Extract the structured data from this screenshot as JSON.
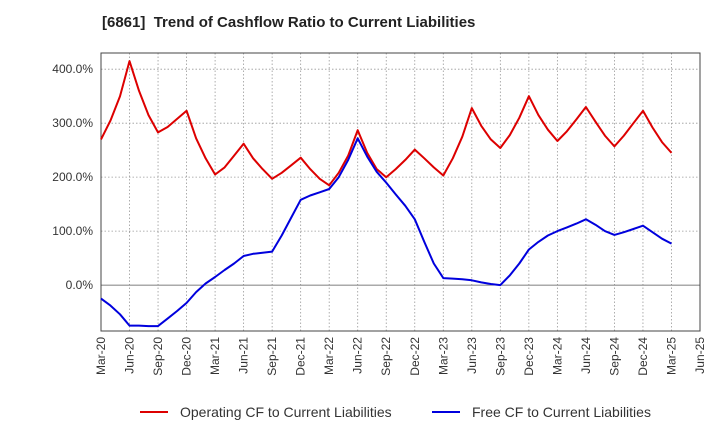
{
  "chart_data": {
    "type": "line",
    "title": "[6861]  Trend of Cashflow Ratio to Current Liabilities",
    "xlabel": "",
    "ylabel": "",
    "ylim": [
      -85,
      430
    ],
    "y_ticks": [
      "400.0%",
      "300.0%",
      "200.0%",
      "100.0%",
      "0.0%"
    ],
    "y_tick_values": [
      400,
      300,
      200,
      100,
      0
    ],
    "x_ticks": [
      "Mar-20",
      "Jun-20",
      "Sep-20",
      "Dec-20",
      "Mar-21",
      "Jun-21",
      "Sep-21",
      "Dec-21",
      "Mar-22",
      "Jun-22",
      "Sep-22",
      "Dec-22",
      "Mar-23",
      "Jun-23",
      "Sep-23",
      "Dec-23",
      "Mar-24",
      "Jun-24",
      "Sep-24",
      "Dec-24",
      "Mar-25",
      "Jun-25"
    ],
    "grid": true,
    "legend_position": "bottom",
    "series": [
      {
        "name": "Operating CF to Current Liabilities",
        "color": "#dd0000",
        "x": [
          "2020-03",
          "2020-04",
          "2020-05",
          "2020-06",
          "2020-07",
          "2020-08",
          "2020-09",
          "2020-10",
          "2020-11",
          "2020-12",
          "2021-01",
          "2021-02",
          "2021-03",
          "2021-04",
          "2021-05",
          "2021-06",
          "2021-07",
          "2021-08",
          "2021-09",
          "2021-10",
          "2021-11",
          "2021-12",
          "2022-01",
          "2022-02",
          "2022-03",
          "2022-04",
          "2022-05",
          "2022-06",
          "2022-07",
          "2022-08",
          "2022-09",
          "2022-10",
          "2022-11",
          "2022-12",
          "2023-01",
          "2023-02",
          "2023-03",
          "2023-04",
          "2023-05",
          "2023-06",
          "2023-07",
          "2023-08",
          "2023-09",
          "2023-10",
          "2023-11",
          "2023-12",
          "2024-01",
          "2024-02",
          "2024-03",
          "2024-04",
          "2024-05",
          "2024-06",
          "2024-07",
          "2024-08",
          "2024-09",
          "2024-10",
          "2024-11",
          "2024-12",
          "2025-01",
          "2025-02",
          "2025-03"
        ],
        "values": [
          270,
          305,
          350,
          415,
          360,
          315,
          283,
          293,
          308,
          323,
          272,
          235,
          205,
          218,
          240,
          262,
          235,
          215,
          197,
          208,
          222,
          236,
          215,
          197,
          185,
          208,
          240,
          287,
          245,
          215,
          200,
          215,
          232,
          251,
          235,
          218,
          203,
          235,
          275,
          328,
          295,
          270,
          254,
          278,
          310,
          350,
          315,
          288,
          267,
          285,
          307,
          330,
          303,
          277,
          257,
          277,
          300,
          323,
          292,
          265,
          245
        ]
      },
      {
        "name": "Free CF to Current Liabilities",
        "color": "#0000dd",
        "x": [
          "2020-03",
          "2020-04",
          "2020-05",
          "2020-06",
          "2020-07",
          "2020-08",
          "2020-09",
          "2020-10",
          "2020-11",
          "2020-12",
          "2021-01",
          "2021-02",
          "2021-03",
          "2021-04",
          "2021-05",
          "2021-06",
          "2021-07",
          "2021-08",
          "2021-09",
          "2021-10",
          "2021-11",
          "2021-12",
          "2022-01",
          "2022-02",
          "2022-03",
          "2022-04",
          "2022-05",
          "2022-06",
          "2022-07",
          "2022-08",
          "2022-09",
          "2022-10",
          "2022-11",
          "2022-12",
          "2023-01",
          "2023-02",
          "2023-03",
          "2023-04",
          "2023-05",
          "2023-06",
          "2023-07",
          "2023-08",
          "2023-09",
          "2023-10",
          "2023-11",
          "2023-12",
          "2024-01",
          "2024-02",
          "2024-03",
          "2024-04",
          "2024-05",
          "2024-06",
          "2024-07",
          "2024-08",
          "2024-09",
          "2024-10",
          "2024-11",
          "2024-12",
          "2025-01",
          "2025-02",
          "2025-03"
        ],
        "values": [
          -25,
          -38,
          -54,
          -75,
          -75,
          -76,
          -76,
          -62,
          -48,
          -33,
          -13,
          3,
          15,
          28,
          40,
          54,
          58,
          60,
          62,
          92,
          125,
          158,
          166,
          172,
          178,
          200,
          232,
          272,
          238,
          210,
          190,
          168,
          147,
          122,
          80,
          40,
          13,
          12,
          11,
          9,
          5,
          2,
          0,
          18,
          40,
          66,
          80,
          92,
          100,
          107,
          114,
          122,
          112,
          100,
          93,
          98,
          104,
          110,
          98,
          86,
          77
        ]
      }
    ]
  }
}
